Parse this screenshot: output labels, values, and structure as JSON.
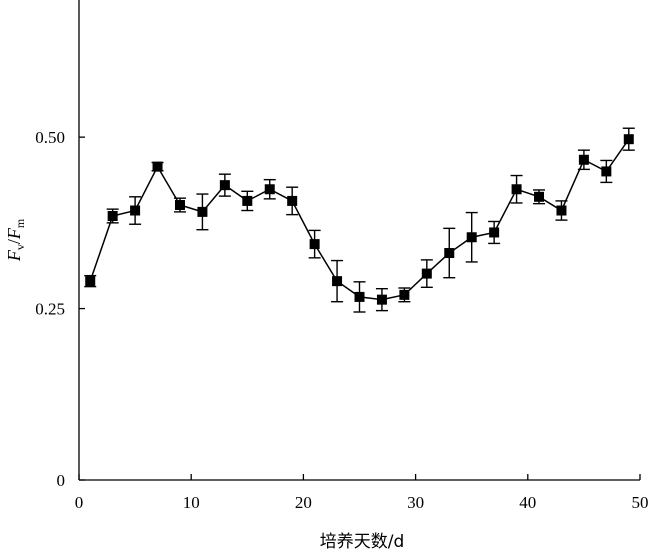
{
  "chart_data": {
    "type": "line",
    "xlabel": "培养天数/d",
    "ylabel": {
      "main1": "F",
      "sub1": "v",
      "slash": "/",
      "main2": "F",
      "sub2": "m"
    },
    "xlim": [
      0,
      50
    ],
    "ylim": [
      0,
      0.7
    ],
    "xticks": [
      0,
      10,
      20,
      30,
      40,
      50
    ],
    "xtick_labels": [
      "0",
      "10",
      "20",
      "30",
      "40",
      "50"
    ],
    "yticks": [
      0,
      0.25,
      0.5
    ],
    "ytick_labels": [
      "0",
      "0.25",
      "0.50"
    ],
    "grid": false,
    "marker": "square",
    "series": [
      {
        "x": [
          1,
          3,
          5,
          7,
          9,
          11,
          13,
          15,
          17,
          19,
          21,
          23,
          25,
          27,
          29,
          31,
          33,
          35,
          37,
          39,
          41,
          43,
          45,
          47,
          49
        ],
        "y": [
          0.29,
          0.385,
          0.393,
          0.457,
          0.401,
          0.391,
          0.43,
          0.407,
          0.424,
          0.407,
          0.344,
          0.29,
          0.267,
          0.263,
          0.27,
          0.301,
          0.331,
          0.354,
          0.361,
          0.424,
          0.413,
          0.393,
          0.467,
          0.45,
          0.497
        ],
        "err": [
          0.008,
          0.01,
          0.02,
          0.006,
          0.01,
          0.026,
          0.016,
          0.014,
          0.014,
          0.02,
          0.02,
          0.03,
          0.022,
          0.016,
          0.01,
          0.02,
          0.036,
          0.036,
          0.016,
          0.02,
          0.01,
          0.014,
          0.014,
          0.016,
          0.016
        ]
      }
    ]
  }
}
